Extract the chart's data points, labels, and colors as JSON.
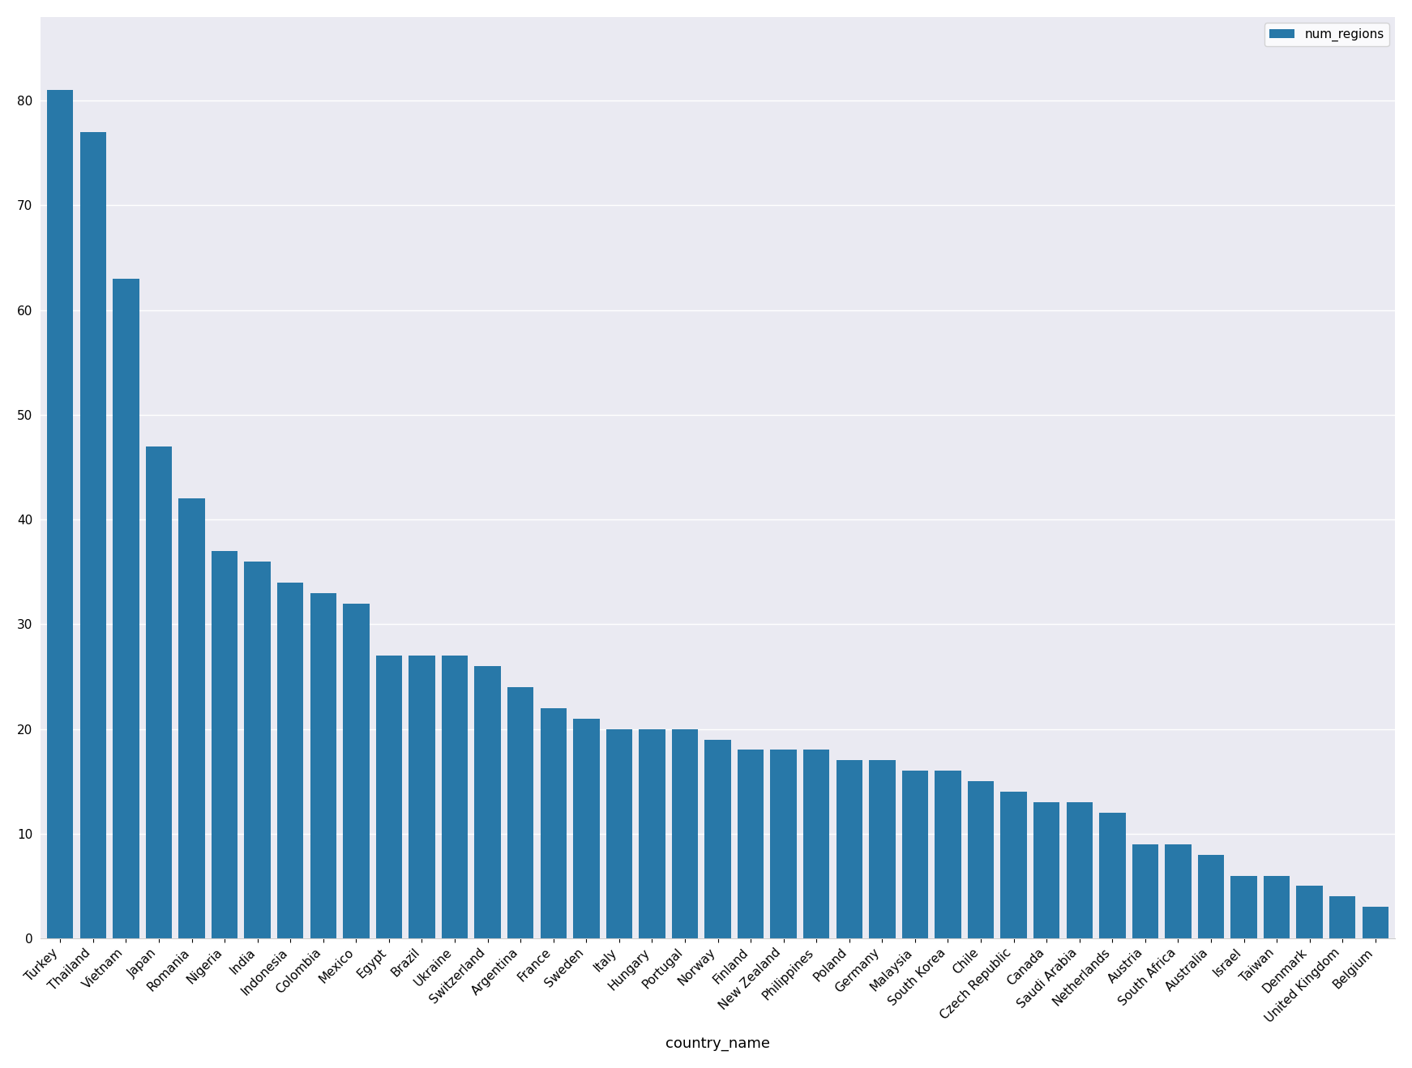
{
  "categories": [
    "Turkey",
    "Thailand",
    "Vietnam",
    "Japan",
    "Romania",
    "Nigeria",
    "India",
    "Indonesia",
    "Colombia",
    "Mexico",
    "Egypt",
    "Brazil",
    "Ukraine",
    "Switzerland",
    "Argentina",
    "France",
    "Sweden",
    "Italy",
    "Hungary",
    "Portugal",
    "Norway",
    "Finland",
    "New Zealand",
    "Philippines",
    "Poland",
    "Germany",
    "Malaysia",
    "South Korea",
    "Chile",
    "Czech Republic",
    "Canada",
    "Saudi Arabia",
    "Netherlands",
    "Austria",
    "South Africa",
    "Australia",
    "Israel",
    "Taiwan",
    "Denmark",
    "United Kingdom",
    "Belgium"
  ],
  "values": [
    81,
    77,
    63,
    47,
    42,
    37,
    36,
    34,
    33,
    32,
    27,
    27,
    27,
    26,
    24,
    22,
    21,
    20,
    20,
    20,
    19,
    18,
    18,
    18,
    17,
    17,
    16,
    16,
    15,
    14,
    13,
    13,
    12,
    9,
    9,
    8,
    6,
    6,
    5,
    4,
    3
  ],
  "bar_color": "#2878a8",
  "xlabel": "country_name",
  "ylabel": "",
  "legend_label": "num_regions",
  "background_color": "#ffffff",
  "figsize": [
    17.42,
    13.18
  ],
  "dpi": 100,
  "yticks": [
    0,
    10,
    20,
    30,
    40,
    50,
    60,
    70,
    80
  ],
  "ylim": [
    0,
    88
  ]
}
